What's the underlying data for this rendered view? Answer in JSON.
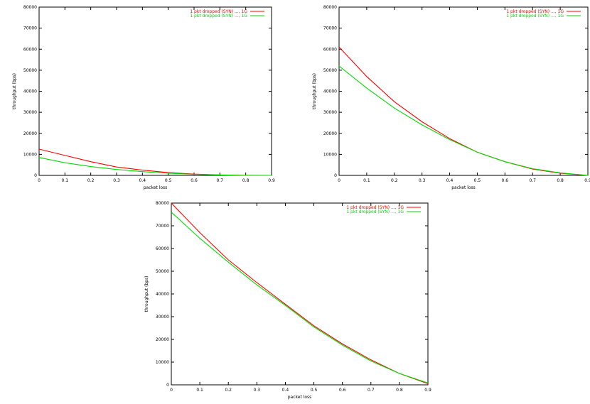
{
  "chart_data": [
    {
      "type": "line",
      "xlabel": "packet loss",
      "ylabel": "throughput (bps)",
      "xlim": [
        0,
        0.9
      ],
      "ylim": [
        0,
        80000
      ],
      "xticks": [
        "0",
        "0.1",
        "0.2",
        "0.3",
        "0.4",
        "0.5",
        "0.6",
        "0.7",
        "0.8",
        "0.9"
      ],
      "yticks": [
        "0",
        "10000",
        "20000",
        "30000",
        "40000",
        "50000",
        "60000",
        "70000",
        "80000"
      ],
      "legend_position": "top-right",
      "grid": false,
      "series": [
        {
          "name": "1 pkt dropped (SYN) ..., 1G",
          "color": "#ff0000",
          "x": [
            0,
            0.1,
            0.2,
            0.3,
            0.4,
            0.5,
            0.6,
            0.7,
            0.8,
            0.9
          ],
          "y": [
            12500,
            9500,
            6500,
            4000,
            2500,
            1300,
            600,
            200,
            50,
            0
          ]
        },
        {
          "name": "1 pkt dropped (SYN) ..., 1G",
          "color": "#00dd00",
          "x": [
            0,
            0.1,
            0.2,
            0.3,
            0.4,
            0.5,
            0.6,
            0.7,
            0.8,
            0.9
          ],
          "y": [
            8500,
            6000,
            4200,
            2800,
            1800,
            1000,
            500,
            200,
            50,
            0
          ]
        }
      ]
    },
    {
      "type": "line",
      "xlabel": "packet loss",
      "ylabel": "throughput (bps)",
      "xlim": [
        0,
        0.9
      ],
      "ylim": [
        0,
        80000
      ],
      "xticks": [
        "0",
        "0.1",
        "0.2",
        "0.3",
        "0.4",
        "0.5",
        "0.6",
        "0.7",
        "0.8",
        "0.9"
      ],
      "yticks": [
        "0",
        "10000",
        "20000",
        "30000",
        "40000",
        "50000",
        "60000",
        "70000",
        "80000"
      ],
      "legend_position": "top-right",
      "grid": false,
      "series": [
        {
          "name": "1 pkt dropped (SYN) ..., 1G",
          "color": "#ff0000",
          "x": [
            0,
            0.1,
            0.2,
            0.3,
            0.4,
            0.5,
            0.6,
            0.7,
            0.8,
            0.9
          ],
          "y": [
            61000,
            47000,
            35000,
            25500,
            17500,
            11000,
            6500,
            3000,
            1000,
            0
          ]
        },
        {
          "name": "1 pkt dropped (SYN) ..., 1G",
          "color": "#00dd00",
          "x": [
            0,
            0.1,
            0.2,
            0.3,
            0.4,
            0.5,
            0.6,
            0.7,
            0.8,
            0.9
          ],
          "y": [
            52000,
            41500,
            32000,
            24000,
            17000,
            11000,
            6500,
            3200,
            1200,
            0
          ]
        }
      ]
    },
    {
      "type": "line",
      "xlabel": "packet loss",
      "ylabel": "throughput (bps)",
      "xlim": [
        0,
        0.9
      ],
      "ylim": [
        0,
        80000
      ],
      "xticks": [
        "0",
        "0.1",
        "0.2",
        "0.3",
        "0.4",
        "0.5",
        "0.6",
        "0.7",
        "0.8",
        "0.9"
      ],
      "yticks": [
        "0",
        "10000",
        "20000",
        "30000",
        "40000",
        "50000",
        "60000",
        "70000",
        "80000"
      ],
      "legend_position": "top-right",
      "grid": false,
      "series": [
        {
          "name": "1 pkt dropped (SYN) ..., 1G",
          "color": "#ff0000",
          "x": [
            0,
            0.1,
            0.2,
            0.3,
            0.4,
            0.5,
            0.6,
            0.7,
            0.8,
            0.9
          ],
          "y": [
            80000,
            67000,
            55000,
            45000,
            35500,
            26000,
            18000,
            11000,
            5000,
            500
          ]
        },
        {
          "name": "1 pkt dropped (SYN) ..., 1G",
          "color": "#00dd00",
          "x": [
            0,
            0.1,
            0.2,
            0.3,
            0.4,
            0.5,
            0.6,
            0.7,
            0.8,
            0.9
          ],
          "y": [
            76000,
            64500,
            54000,
            44000,
            35000,
            25500,
            17500,
            10500,
            5000,
            800
          ]
        }
      ]
    }
  ]
}
